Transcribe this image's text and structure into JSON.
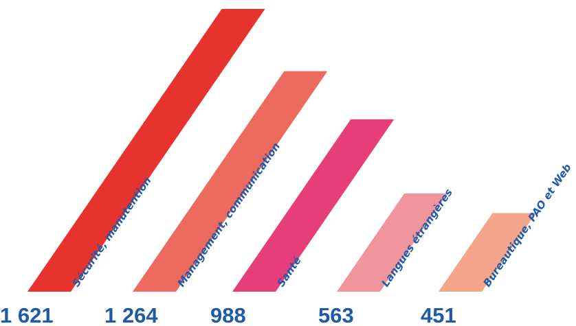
{
  "chart_data": {
    "type": "bar",
    "categories": [
      "Sécurité, manutention",
      "Management, communication",
      "Santé",
      "Langues étrangères",
      "Bureautique, PAO et Web"
    ],
    "values": [
      1621,
      1264,
      988,
      563,
      451
    ],
    "value_labels": [
      "1 621",
      "1 264",
      "988",
      "563",
      "451"
    ],
    "colors": [
      "#e6332e",
      "#ec6a5e",
      "#e53e78",
      "#f0959c",
      "#f5a68a"
    ],
    "text_color": "#1f5aa8"
  }
}
